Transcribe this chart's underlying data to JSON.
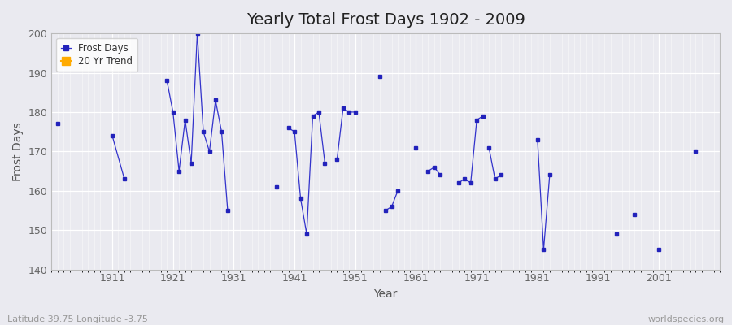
{
  "title": "Yearly Total Frost Days 1902 - 2009",
  "xlabel": "Year",
  "ylabel": "Frost Days",
  "xlim": [
    1901,
    2011
  ],
  "ylim": [
    140,
    200
  ],
  "xticks": [
    1911,
    1921,
    1931,
    1941,
    1951,
    1961,
    1971,
    1981,
    1991,
    2001
  ],
  "yticks": [
    140,
    150,
    160,
    170,
    180,
    190,
    200
  ],
  "background_color": "#eaeaf0",
  "plot_bg_color": "#eaeaf0",
  "line_color": "#3333cc",
  "marker_color": "#2222bb",
  "segments": [
    [
      [
        1902,
        177
      ]
    ],
    [
      [
        1911,
        174
      ],
      [
        1913,
        163
      ]
    ],
    [
      [
        1920,
        188
      ],
      [
        1921,
        180
      ],
      [
        1922,
        165
      ],
      [
        1923,
        178
      ],
      [
        1924,
        167
      ],
      [
        1925,
        200
      ],
      [
        1926,
        175
      ],
      [
        1927,
        170
      ],
      [
        1928,
        183
      ],
      [
        1929,
        175
      ],
      [
        1930,
        155
      ]
    ],
    [
      [
        1938,
        161
      ]
    ],
    [
      [
        1940,
        176
      ],
      [
        1941,
        175
      ],
      [
        1942,
        158
      ],
      [
        1943,
        149
      ],
      [
        1944,
        179
      ],
      [
        1945,
        180
      ],
      [
        1946,
        167
      ]
    ],
    [
      [
        1948,
        168
      ],
      [
        1949,
        181
      ],
      [
        1950,
        180
      ],
      [
        1951,
        180
      ]
    ],
    [
      [
        1955,
        189
      ]
    ],
    [
      [
        1956,
        155
      ],
      [
        1957,
        156
      ],
      [
        1958,
        160
      ]
    ],
    [
      [
        1961,
        171
      ]
    ],
    [
      [
        1963,
        165
      ],
      [
        1964,
        166
      ],
      [
        1965,
        164
      ]
    ],
    [
      [
        1968,
        162
      ],
      [
        1969,
        163
      ],
      [
        1970,
        162
      ],
      [
        1971,
        178
      ],
      [
        1972,
        179
      ]
    ],
    [
      [
        1973,
        171
      ],
      [
        1974,
        163
      ],
      [
        1975,
        164
      ]
    ],
    [
      [
        1981,
        173
      ],
      [
        1982,
        145
      ],
      [
        1983,
        164
      ]
    ],
    [
      [
        1994,
        149
      ]
    ],
    [
      [
        1997,
        154
      ]
    ],
    [
      [
        2001,
        145
      ]
    ],
    [
      [
        2007,
        170
      ]
    ]
  ],
  "footer_left": "Latitude 39.75 Longitude -3.75",
  "footer_right": "worldspecies.org",
  "title_fontsize": 14,
  "axis_label_fontsize": 10,
  "tick_fontsize": 9,
  "footer_fontsize": 8
}
